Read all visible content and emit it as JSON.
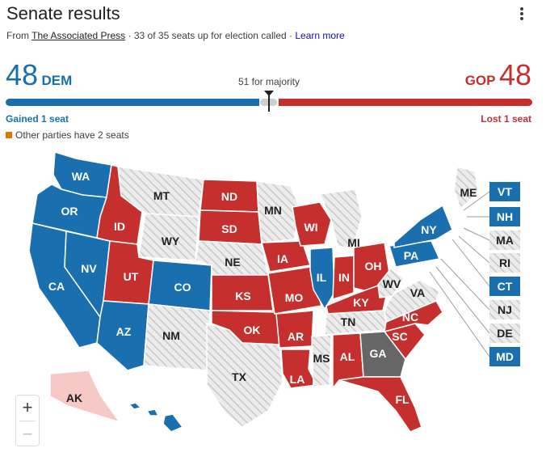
{
  "header": {
    "title": "Senate results",
    "source_prefix": "From",
    "source_name": "The Associated Press",
    "separator": "·",
    "seats_status": "33 of 35 seats up for election called",
    "learn_more": "Learn more"
  },
  "tally": {
    "dem_count": "48",
    "dem_label": "DEM",
    "gop_count": "48",
    "gop_label": "GOP",
    "majority_label": "51 for majority",
    "dem_change": "Gained 1 seat",
    "gop_change": "Lost 1 seat",
    "other_note": "Other parties have 2 seats"
  },
  "colors": {
    "dem": "#1a6faf",
    "gop": "#c5302e",
    "pending": "#666666",
    "no_race": "#e8e8e8",
    "other": "#e37400",
    "alaska_light_gop": "#f6c8c6"
  },
  "zoom": {
    "in": "+",
    "out": "−"
  },
  "states": [
    {
      "code": "WA",
      "label": "WA",
      "party": "dem"
    },
    {
      "code": "OR",
      "label": "OR",
      "party": "dem"
    },
    {
      "code": "CA",
      "label": "CA",
      "party": "dem"
    },
    {
      "code": "NV",
      "label": "NV",
      "party": "dem"
    },
    {
      "code": "ID",
      "label": "ID",
      "party": "gop"
    },
    {
      "code": "MT",
      "label": "MT",
      "party": "none"
    },
    {
      "code": "WY",
      "label": "WY",
      "party": "none"
    },
    {
      "code": "UT",
      "label": "UT",
      "party": "gop"
    },
    {
      "code": "AZ",
      "label": "AZ",
      "party": "dem"
    },
    {
      "code": "CO",
      "label": "CO",
      "party": "dem"
    },
    {
      "code": "NM",
      "label": "NM",
      "party": "none"
    },
    {
      "code": "ND",
      "label": "ND",
      "party": "gop"
    },
    {
      "code": "SD",
      "label": "SD",
      "party": "gop"
    },
    {
      "code": "NE",
      "label": "NE",
      "party": "none"
    },
    {
      "code": "KS",
      "label": "KS",
      "party": "gop"
    },
    {
      "code": "OK",
      "label": "OK",
      "party": "gop"
    },
    {
      "code": "TX",
      "label": "TX",
      "party": "none"
    },
    {
      "code": "MN",
      "label": "MN",
      "party": "none"
    },
    {
      "code": "IA",
      "label": "IA",
      "party": "gop"
    },
    {
      "code": "MO",
      "label": "MO",
      "party": "gop"
    },
    {
      "code": "AR",
      "label": "AR",
      "party": "gop"
    },
    {
      "code": "LA",
      "label": "LA",
      "party": "gop"
    },
    {
      "code": "WI",
      "label": "WI",
      "party": "gop"
    },
    {
      "code": "IL",
      "label": "IL",
      "party": "dem"
    },
    {
      "code": "MI",
      "label": "MI",
      "party": "none"
    },
    {
      "code": "IN",
      "label": "IN",
      "party": "gop"
    },
    {
      "code": "OH",
      "label": "OH",
      "party": "gop"
    },
    {
      "code": "KY",
      "label": "KY",
      "party": "gop"
    },
    {
      "code": "TN",
      "label": "TN",
      "party": "none"
    },
    {
      "code": "MS",
      "label": "MS",
      "party": "none"
    },
    {
      "code": "AL",
      "label": "AL",
      "party": "gop"
    },
    {
      "code": "GA",
      "label": "GA",
      "party": "pending"
    },
    {
      "code": "FL",
      "label": "FL",
      "party": "gop"
    },
    {
      "code": "SC",
      "label": "SC",
      "party": "gop"
    },
    {
      "code": "NC",
      "label": "NC",
      "party": "gop"
    },
    {
      "code": "VA",
      "label": "VA",
      "party": "none"
    },
    {
      "code": "WV",
      "label": "WV",
      "party": "none"
    },
    {
      "code": "PA",
      "label": "PA",
      "party": "dem"
    },
    {
      "code": "NY",
      "label": "NY",
      "party": "dem"
    },
    {
      "code": "ME",
      "label": "ME",
      "party": "none"
    },
    {
      "code": "AK",
      "label": "AK",
      "party": "gop_light"
    },
    {
      "code": "HI",
      "label": "HI",
      "party": "dem"
    }
  ],
  "small_states": [
    {
      "code": "VT",
      "label": "VT",
      "party": "dem"
    },
    {
      "code": "NH",
      "label": "NH",
      "party": "dem"
    },
    {
      "code": "MA",
      "label": "MA",
      "party": "none"
    },
    {
      "code": "RI",
      "label": "RI",
      "party": "none"
    },
    {
      "code": "CT",
      "label": "CT",
      "party": "dem"
    },
    {
      "code": "NJ",
      "label": "NJ",
      "party": "none"
    },
    {
      "code": "DE",
      "label": "DE",
      "party": "none"
    },
    {
      "code": "MD",
      "label": "MD",
      "party": "dem"
    }
  ]
}
